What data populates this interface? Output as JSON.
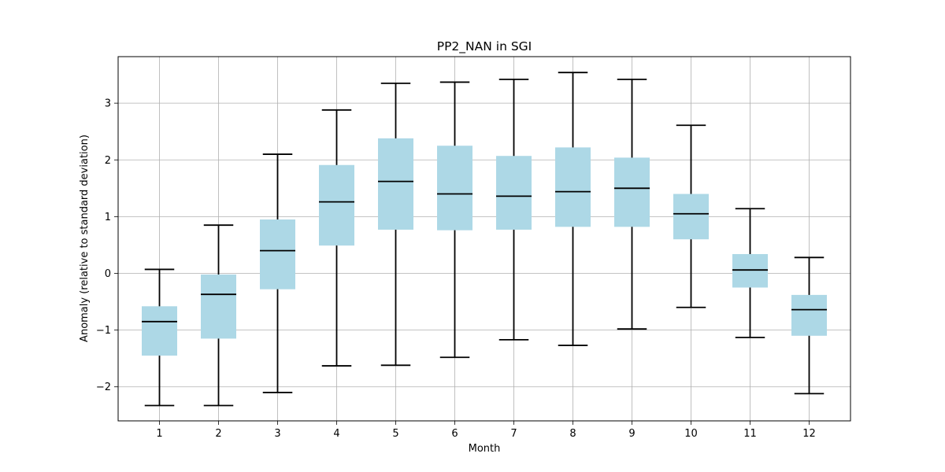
{
  "chart_data": {
    "type": "boxplot",
    "title": "PP2_NAN in SGI",
    "xlabel": "Month",
    "ylabel": "Anomaly (relative to standard deviation)",
    "categories": [
      "1",
      "2",
      "3",
      "4",
      "5",
      "6",
      "7",
      "8",
      "9",
      "10",
      "11",
      "12"
    ],
    "yticks": [
      -2,
      -1,
      0,
      1,
      2,
      3
    ],
    "ytick_labels": [
      "−2",
      "−1",
      "0",
      "1",
      "2",
      "3"
    ],
    "ylim": [
      -2.6,
      3.82
    ],
    "grid": true,
    "box_color": "#add8e6",
    "line_color": "#000000",
    "grid_color": "#b0b0b0",
    "boxes": [
      {
        "whislo": -2.33,
        "q1": -1.45,
        "med": -0.85,
        "q3": -0.58,
        "whishi": 0.07
      },
      {
        "whislo": -2.33,
        "q1": -1.15,
        "med": -0.37,
        "q3": -0.02,
        "whishi": 0.85
      },
      {
        "whislo": -2.1,
        "q1": -0.28,
        "med": 0.4,
        "q3": 0.95,
        "whishi": 2.1
      },
      {
        "whislo": -1.63,
        "q1": 0.49,
        "med": 1.26,
        "q3": 1.91,
        "whishi": 2.88
      },
      {
        "whislo": -1.62,
        "q1": 0.77,
        "med": 1.62,
        "q3": 2.38,
        "whishi": 3.35
      },
      {
        "whislo": -1.48,
        "q1": 0.76,
        "med": 1.4,
        "q3": 2.25,
        "whishi": 3.37
      },
      {
        "whislo": -1.17,
        "q1": 0.77,
        "med": 1.36,
        "q3": 2.07,
        "whishi": 3.42
      },
      {
        "whislo": -1.27,
        "q1": 0.82,
        "med": 1.44,
        "q3": 2.22,
        "whishi": 3.54
      },
      {
        "whislo": -0.98,
        "q1": 0.82,
        "med": 1.5,
        "q3": 2.04,
        "whishi": 3.42
      },
      {
        "whislo": -0.6,
        "q1": 0.6,
        "med": 1.05,
        "q3": 1.4,
        "whishi": 2.61
      },
      {
        "whislo": -1.13,
        "q1": -0.25,
        "med": 0.06,
        "q3": 0.34,
        "whishi": 1.14
      },
      {
        "whislo": -2.12,
        "q1": -1.1,
        "med": -0.64,
        "q3": -0.38,
        "whishi": 0.28
      }
    ]
  }
}
